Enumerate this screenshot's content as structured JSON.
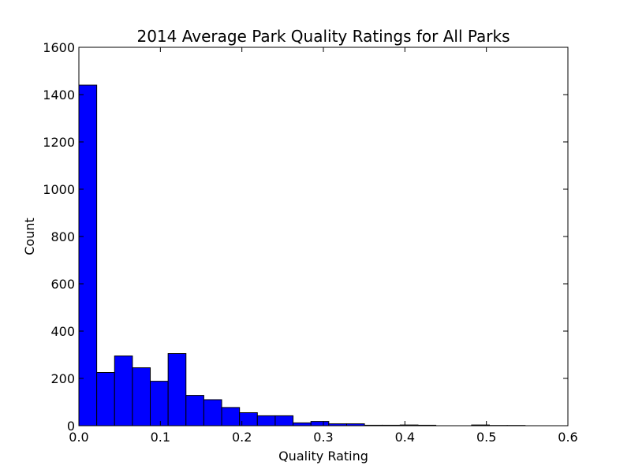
{
  "chart_data": {
    "type": "bar",
    "title": "2014 Average Park Quality Ratings for All Parks",
    "xlabel": "Quality Rating",
    "ylabel": "Count",
    "xlim": [
      0.0,
      0.6
    ],
    "ylim": [
      0,
      1600
    ],
    "xticks": [
      "0.0",
      "0.1",
      "0.2",
      "0.3",
      "0.4",
      "0.5",
      "0.6"
    ],
    "yticks": [
      "0",
      "200",
      "400",
      "600",
      "800",
      "1000",
      "1200",
      "1400",
      "1600"
    ],
    "grid": false,
    "bar_color": "#0000ff",
    "bins": [
      {
        "x0": 0.0,
        "x1": 0.0219,
        "value": 1440
      },
      {
        "x0": 0.0219,
        "x1": 0.0438,
        "value": 225
      },
      {
        "x0": 0.0438,
        "x1": 0.0657,
        "value": 295
      },
      {
        "x0": 0.0657,
        "x1": 0.0876,
        "value": 245
      },
      {
        "x0": 0.0876,
        "x1": 0.1095,
        "value": 188
      },
      {
        "x0": 0.1095,
        "x1": 0.1314,
        "value": 305
      },
      {
        "x0": 0.1314,
        "x1": 0.1533,
        "value": 128
      },
      {
        "x0": 0.1533,
        "x1": 0.1752,
        "value": 110
      },
      {
        "x0": 0.1752,
        "x1": 0.1971,
        "value": 77
      },
      {
        "x0": 0.1971,
        "x1": 0.219,
        "value": 55
      },
      {
        "x0": 0.219,
        "x1": 0.2409,
        "value": 42
      },
      {
        "x0": 0.2409,
        "x1": 0.2628,
        "value": 42
      },
      {
        "x0": 0.2628,
        "x1": 0.2847,
        "value": 12
      },
      {
        "x0": 0.2847,
        "x1": 0.3066,
        "value": 18
      },
      {
        "x0": 0.3066,
        "x1": 0.3285,
        "value": 8
      },
      {
        "x0": 0.3285,
        "x1": 0.3504,
        "value": 8
      },
      {
        "x0": 0.3504,
        "x1": 0.3723,
        "value": 2
      },
      {
        "x0": 0.3723,
        "x1": 0.3942,
        "value": 2
      },
      {
        "x0": 0.3942,
        "x1": 0.4161,
        "value": 3
      },
      {
        "x0": 0.4161,
        "x1": 0.438,
        "value": 2
      },
      {
        "x0": 0.438,
        "x1": 0.4599,
        "value": 0
      },
      {
        "x0": 0.4599,
        "x1": 0.4818,
        "value": 0
      },
      {
        "x0": 0.4818,
        "x1": 0.5037,
        "value": 3
      },
      {
        "x0": 0.5037,
        "x1": 0.5256,
        "value": 1
      },
      {
        "x0": 0.5256,
        "x1": 0.5475,
        "value": 1
      }
    ]
  }
}
